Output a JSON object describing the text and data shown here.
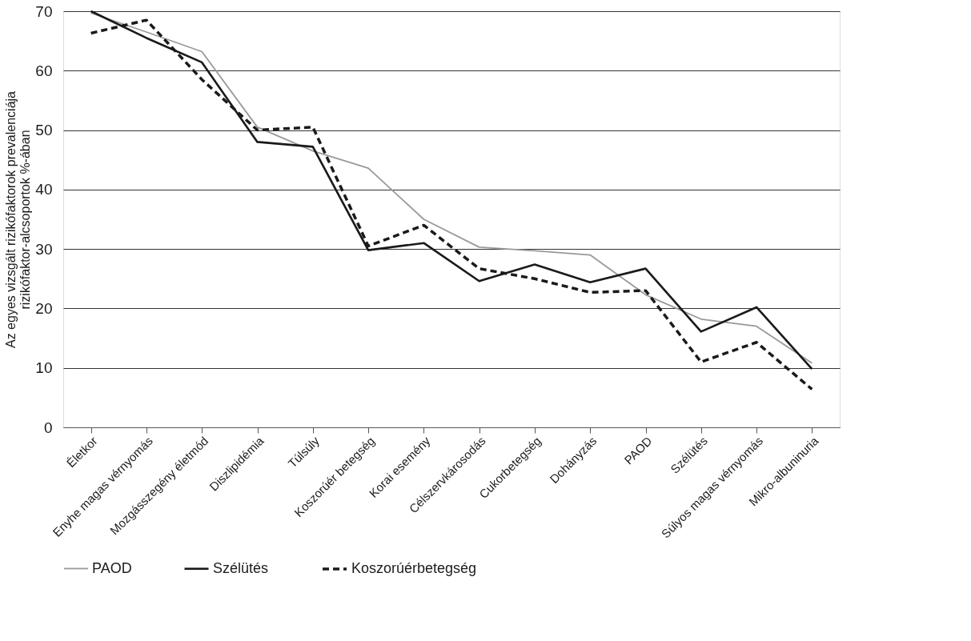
{
  "chart_data": {
    "type": "line",
    "ylabel": "Az egyes vizsgált rizikófaktorok prevalenciája\nrizikófaktor-alcsoportok %-ában",
    "categories": [
      "Életkor",
      "Enyhe magas vérnyomás",
      "Mozgásszegény életmód",
      "Diszlipidémia",
      "Túlsúly",
      "Koszorúér betegség",
      "Korai esemény",
      "Célszervkárosodás",
      "Cukorbetegség",
      "Dohányzás",
      "PAOD",
      "Szélütés",
      "Súlyos magas vérnyomás",
      "Mikro-albuninuria"
    ],
    "series": [
      {
        "name": "PAOD",
        "color": "#999999",
        "line_style": "solid",
        "values": [
          69.7,
          66.5,
          63.2,
          50.5,
          46.5,
          43.6,
          35,
          30.3,
          29.7,
          29,
          22.3,
          18.2,
          17,
          10.8
        ]
      },
      {
        "name": "Szélütés",
        "color": "#1a1a1a",
        "line_style": "solid",
        "values": [
          70,
          65.5,
          61.4,
          48,
          47.2,
          29.8,
          31,
          24.6,
          27.4,
          24.4,
          26.7,
          16.1,
          20.2,
          9.8
        ]
      },
      {
        "name": "Koszorúérbetegség",
        "color": "#1a1a1a",
        "line_style": "dashed",
        "values": [
          66.3,
          68.5,
          58.5,
          50,
          50.5,
          30.5,
          34,
          26.7,
          25,
          22.7,
          23,
          11,
          14.3,
          6.4
        ]
      }
    ],
    "ylim": [
      0,
      70
    ],
    "yticks": [
      0,
      10,
      20,
      30,
      40,
      50,
      60,
      70
    ],
    "grid": "y",
    "legend": "bottom",
    "marker": "none"
  }
}
